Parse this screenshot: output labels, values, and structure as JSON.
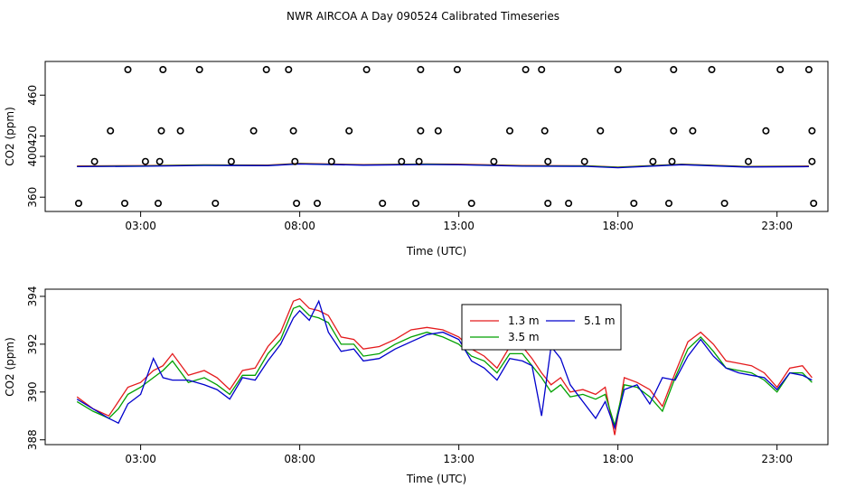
{
  "title": "NWR AIRCOA A  Day 090524  Calibrated Timeseries",
  "chart_data": [
    {
      "type": "scatter",
      "name": "calibration-panel",
      "xlabel": "Time (UTC)",
      "ylabel": "CO2 (ppm)",
      "xlim": [
        0,
        24.6
      ],
      "ylim": [
        346,
        493
      ],
      "xticks": [
        3,
        8,
        13,
        18,
        23
      ],
      "xtick_labels": [
        "03:00",
        "08:00",
        "13:00",
        "18:00",
        "23:00"
      ],
      "yticks": [
        360,
        400,
        420,
        460
      ],
      "ytick_labels": [
        "360",
        "400",
        "420",
        "460"
      ],
      "standards": {
        "levels": [
          354,
          395,
          425,
          485
        ],
        "x": [
          [
            1.05,
            2.5,
            3.55,
            5.35,
            7.9,
            8.55,
            10.6,
            11.65,
            13.4,
            15.8,
            16.45,
            18.5,
            19.6,
            21.35,
            24.15
          ],
          [
            1.55,
            3.15,
            3.6,
            5.85,
            7.85,
            9.0,
            11.2,
            11.75,
            14.1,
            15.8,
            16.95,
            19.1,
            19.7,
            22.1,
            24.1
          ],
          [
            2.05,
            3.65,
            4.25,
            6.55,
            7.8,
            9.55,
            11.8,
            12.35,
            14.6,
            15.7,
            17.45,
            19.75,
            20.35,
            22.65,
            24.1
          ],
          [
            2.6,
            3.7,
            4.85,
            6.95,
            7.65,
            10.1,
            11.8,
            12.95,
            15.1,
            15.6,
            18.0,
            19.75,
            20.95,
            23.1,
            24.0
          ]
        ]
      },
      "series": [
        {
          "name": "1.3 m",
          "color": "#e41a1c",
          "x": [
            1.0,
            3.0,
            5.0,
            7.0,
            8.0,
            10.0,
            12.0,
            13.0,
            15.0,
            17.0,
            18.0,
            20.0,
            22.0,
            24.0
          ],
          "values": [
            390.5,
            390.9,
            391.7,
            391.5,
            393.1,
            391.9,
            392.6,
            392.3,
            391.0,
            390.8,
            389.5,
            392.4,
            390.2,
            390.5
          ]
        },
        {
          "name": "3.5 m",
          "color": "#00a000",
          "x": [
            1.0,
            3.0,
            5.0,
            7.0,
            8.0,
            10.0,
            12.0,
            13.0,
            15.0,
            17.0,
            18.0,
            20.0,
            22.0,
            24.0
          ],
          "values": [
            390.2,
            390.6,
            391.4,
            391.2,
            392.8,
            391.6,
            392.3,
            392.0,
            390.7,
            390.5,
            389.2,
            392.1,
            389.9,
            390.2
          ]
        },
        {
          "name": "5.1 m",
          "color": "#0000cc",
          "x": [
            1.0,
            3.0,
            5.0,
            7.0,
            8.0,
            10.0,
            12.0,
            13.0,
            15.0,
            17.0,
            18.0,
            20.0,
            22.0,
            24.0
          ],
          "values": [
            389.9,
            390.3,
            391.1,
            390.9,
            392.5,
            391.3,
            392.0,
            391.7,
            390.4,
            390.2,
            388.9,
            391.8,
            389.6,
            389.9
          ]
        }
      ]
    },
    {
      "type": "line",
      "name": "timeseries-panel",
      "xlabel": "Time (UTC)",
      "ylabel": "CO2 (ppm)",
      "xlim": [
        0,
        24.6
      ],
      "ylim": [
        387.8,
        394.3
      ],
      "xticks": [
        3,
        8,
        13,
        18,
        23
      ],
      "xtick_labels": [
        "03:00",
        "08:00",
        "13:00",
        "18:00",
        "23:00"
      ],
      "yticks": [
        388,
        390,
        392,
        394
      ],
      "ytick_labels": [
        "388",
        "390",
        "392",
        "394"
      ],
      "legend": {
        "position": "top-center",
        "entries": [
          "1.3 m",
          "5.1 m",
          "3.5 m"
        ]
      },
      "series": [
        {
          "name": "1.3 m",
          "color": "#e41a1c",
          "x": [
            1.0,
            1.5,
            2.0,
            2.3,
            2.6,
            3.0,
            3.4,
            3.7,
            4.0,
            4.5,
            5.0,
            5.4,
            5.8,
            6.2,
            6.6,
            7.0,
            7.4,
            7.8,
            8.0,
            8.3,
            8.6,
            8.9,
            9.3,
            9.7,
            10.0,
            10.5,
            11.0,
            11.5,
            12.0,
            12.5,
            13.0,
            13.4,
            13.8,
            14.2,
            14.6,
            15.0,
            15.3,
            15.6,
            15.9,
            16.2,
            16.5,
            16.9,
            17.3,
            17.6,
            17.9,
            18.2,
            18.6,
            19.0,
            19.4,
            19.8,
            20.2,
            20.6,
            21.0,
            21.4,
            21.8,
            22.2,
            22.6,
            23.0,
            23.4,
            23.8,
            24.1
          ],
          "values": [
            389.8,
            389.3,
            389.0,
            389.6,
            390.2,
            390.4,
            390.9,
            391.1,
            391.6,
            390.7,
            390.9,
            390.6,
            390.1,
            390.9,
            391.0,
            391.9,
            392.5,
            393.8,
            393.9,
            393.5,
            393.4,
            393.2,
            392.3,
            392.2,
            391.8,
            391.9,
            392.2,
            392.6,
            392.7,
            392.6,
            392.3,
            391.8,
            391.5,
            391.0,
            391.9,
            391.9,
            391.4,
            390.8,
            390.3,
            390.6,
            390.0,
            390.1,
            389.9,
            390.2,
            388.2,
            390.6,
            390.4,
            390.1,
            389.4,
            390.8,
            392.1,
            392.5,
            392.0,
            391.3,
            391.2,
            391.1,
            390.8,
            390.2,
            391.0,
            391.1,
            390.6
          ]
        },
        {
          "name": "3.5 m",
          "color": "#00a000",
          "x": [
            1.0,
            1.5,
            2.0,
            2.3,
            2.6,
            3.0,
            3.4,
            3.7,
            4.0,
            4.5,
            5.0,
            5.4,
            5.8,
            6.2,
            6.6,
            7.0,
            7.4,
            7.8,
            8.0,
            8.3,
            8.6,
            8.9,
            9.3,
            9.7,
            10.0,
            10.5,
            11.0,
            11.5,
            12.0,
            12.5,
            13.0,
            13.4,
            13.8,
            14.2,
            14.6,
            15.0,
            15.3,
            15.6,
            15.9,
            16.2,
            16.5,
            16.9,
            17.3,
            17.6,
            17.9,
            18.2,
            18.6,
            19.0,
            19.4,
            19.8,
            20.2,
            20.6,
            21.0,
            21.4,
            21.8,
            22.2,
            22.6,
            23.0,
            23.4,
            23.8,
            24.1
          ],
          "values": [
            389.6,
            389.2,
            388.9,
            389.3,
            389.9,
            390.2,
            390.6,
            390.9,
            391.3,
            390.4,
            390.6,
            390.3,
            389.9,
            390.7,
            390.7,
            391.6,
            392.2,
            393.5,
            393.6,
            393.2,
            393.1,
            392.9,
            392.0,
            392.0,
            391.5,
            391.6,
            392.0,
            392.3,
            392.5,
            392.3,
            392.0,
            391.5,
            391.3,
            390.8,
            391.6,
            391.6,
            391.1,
            390.6,
            390.0,
            390.3,
            389.8,
            389.9,
            389.7,
            389.9,
            388.6,
            390.3,
            390.2,
            389.8,
            389.2,
            390.6,
            391.8,
            392.3,
            391.7,
            391.0,
            390.9,
            390.8,
            390.5,
            390.0,
            390.8,
            390.8,
            390.4
          ]
        },
        {
          "name": "5.1 m",
          "color": "#0000cc",
          "x": [
            1.0,
            1.5,
            2.0,
            2.3,
            2.6,
            3.0,
            3.4,
            3.7,
            4.0,
            4.5,
            5.0,
            5.4,
            5.8,
            6.2,
            6.6,
            7.0,
            7.4,
            7.8,
            8.0,
            8.3,
            8.6,
            8.9,
            9.3,
            9.7,
            10.0,
            10.5,
            11.0,
            11.5,
            12.0,
            12.5,
            13.0,
            13.4,
            13.8,
            14.2,
            14.6,
            15.0,
            15.3,
            15.6,
            15.9,
            16.2,
            16.5,
            16.9,
            17.3,
            17.6,
            17.9,
            18.2,
            18.6,
            19.0,
            19.4,
            19.8,
            20.2,
            20.6,
            21.0,
            21.4,
            21.8,
            22.2,
            22.6,
            23.0,
            23.4,
            23.8,
            24.1
          ],
          "values": [
            389.7,
            389.3,
            388.9,
            388.7,
            389.5,
            389.9,
            391.4,
            390.6,
            390.5,
            390.5,
            390.3,
            390.1,
            389.7,
            390.6,
            390.5,
            391.3,
            392.0,
            393.1,
            393.4,
            393.0,
            393.8,
            392.5,
            391.7,
            391.8,
            391.3,
            391.4,
            391.8,
            392.1,
            392.4,
            392.5,
            392.2,
            391.3,
            391.0,
            390.5,
            391.4,
            391.3,
            391.1,
            389.0,
            391.9,
            391.4,
            390.3,
            389.6,
            388.9,
            389.6,
            388.5,
            390.1,
            390.3,
            389.5,
            390.6,
            390.5,
            391.5,
            392.2,
            391.5,
            391.0,
            390.8,
            390.7,
            390.6,
            390.1,
            390.8,
            390.7,
            390.5
          ]
        }
      ]
    }
  ]
}
